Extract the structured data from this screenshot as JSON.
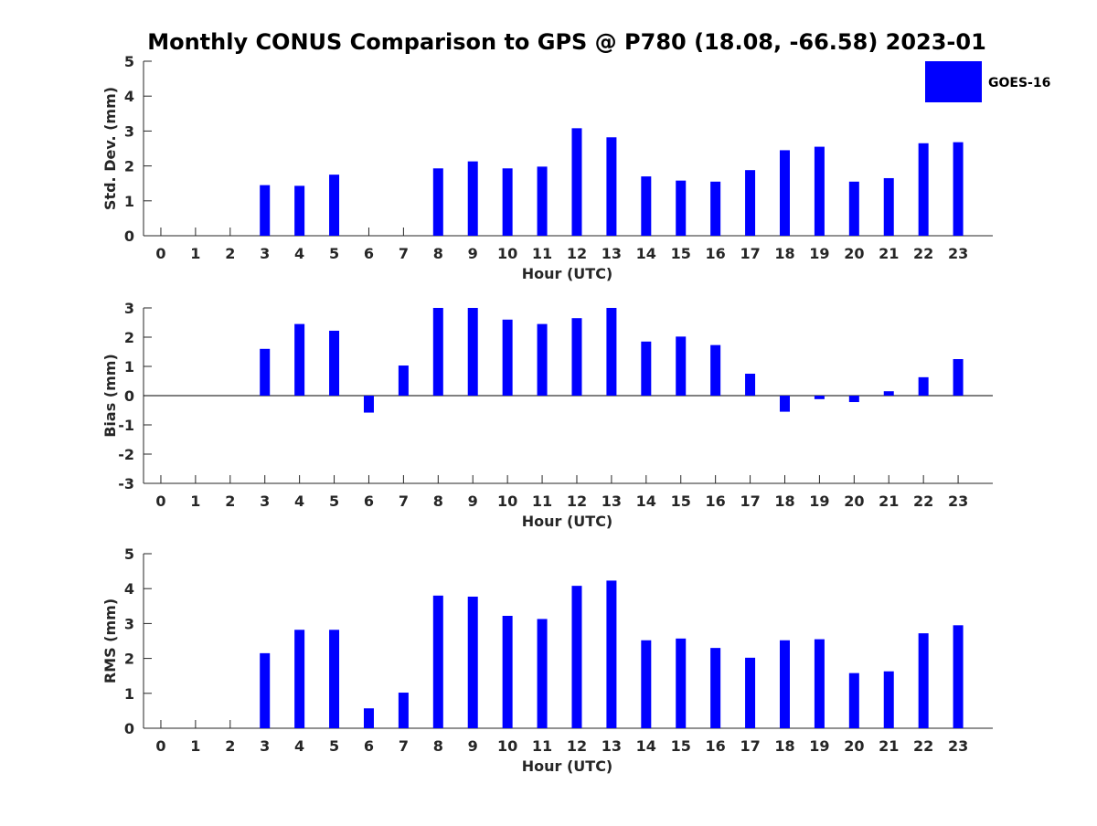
{
  "title": "Monthly CONUS Comparison to GPS @ P780 (18.08, -66.58) 2023-01",
  "legend": {
    "label": "GOES-16",
    "color": "#0000ff",
    "placement": "top-right"
  },
  "chart_data": [
    {
      "type": "bar",
      "xlabel": "Hour (UTC)",
      "ylabel": "Std. Dev. (mm)",
      "ylim": [
        0,
        5
      ],
      "yticks": [
        "0",
        "1",
        "2",
        "3",
        "4",
        "5"
      ],
      "categories": [
        "0",
        "1",
        "2",
        "3",
        "4",
        "5",
        "6",
        "7",
        "8",
        "9",
        "10",
        "11",
        "12",
        "13",
        "14",
        "15",
        "16",
        "17",
        "18",
        "19",
        "20",
        "21",
        "22",
        "23"
      ],
      "series": [
        {
          "name": "GOES-16",
          "values": [
            null,
            null,
            null,
            1.45,
            1.43,
            1.75,
            null,
            null,
            1.93,
            2.13,
            1.93,
            1.98,
            3.08,
            2.82,
            1.7,
            1.58,
            1.55,
            1.88,
            2.45,
            2.55,
            1.55,
            1.65,
            2.65,
            2.68
          ]
        }
      ]
    },
    {
      "type": "bar",
      "xlabel": "Hour (UTC)",
      "ylabel": "Bias (mm)",
      "ylim": [
        -3,
        3
      ],
      "yticks": [
        "-3",
        "-2",
        "-1",
        "0",
        "1",
        "2",
        "3"
      ],
      "categories": [
        "0",
        "1",
        "2",
        "3",
        "4",
        "5",
        "6",
        "7",
        "8",
        "9",
        "10",
        "11",
        "12",
        "13",
        "14",
        "15",
        "16",
        "17",
        "18",
        "19",
        "20",
        "21",
        "22",
        "23"
      ],
      "series": [
        {
          "name": "GOES-16",
          "values": [
            null,
            null,
            null,
            1.6,
            2.45,
            2.22,
            -0.58,
            1.03,
            3.0,
            3.0,
            2.6,
            2.45,
            2.65,
            3.0,
            1.85,
            2.02,
            1.73,
            0.75,
            -0.55,
            -0.12,
            -0.22,
            0.15,
            0.63,
            1.25
          ]
        }
      ]
    },
    {
      "type": "bar",
      "xlabel": "Hour (UTC)",
      "ylabel": "RMS (mm)",
      "ylim": [
        0,
        5
      ],
      "yticks": [
        "0",
        "1",
        "2",
        "3",
        "4",
        "5"
      ],
      "categories": [
        "0",
        "1",
        "2",
        "3",
        "4",
        "5",
        "6",
        "7",
        "8",
        "9",
        "10",
        "11",
        "12",
        "13",
        "14",
        "15",
        "16",
        "17",
        "18",
        "19",
        "20",
        "21",
        "22",
        "23"
      ],
      "series": [
        {
          "name": "GOES-16",
          "values": [
            null,
            null,
            null,
            2.15,
            2.82,
            2.82,
            0.57,
            1.02,
            3.8,
            3.77,
            3.22,
            3.13,
            4.08,
            4.23,
            2.52,
            2.57,
            2.3,
            2.02,
            2.52,
            2.55,
            1.58,
            1.63,
            2.72,
            2.95
          ]
        }
      ]
    }
  ]
}
